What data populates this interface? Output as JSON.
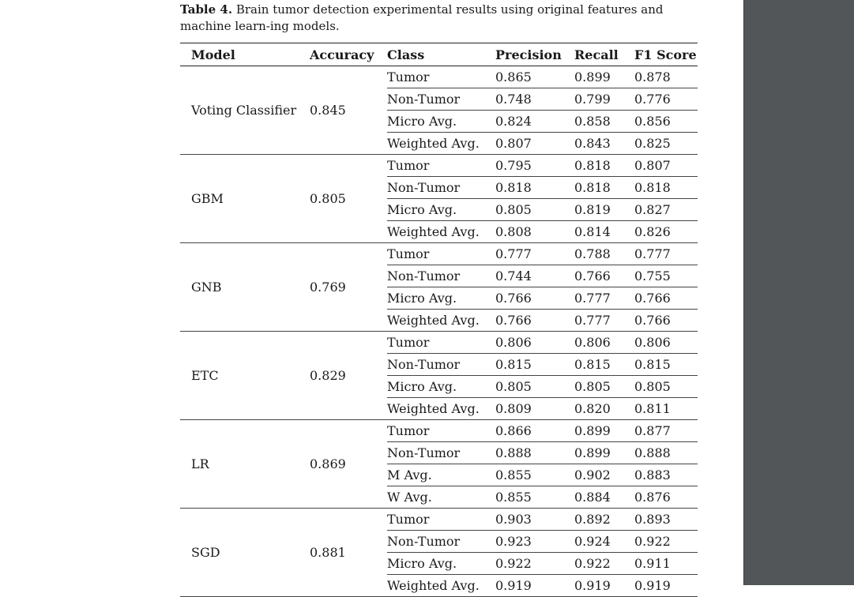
{
  "caption": {
    "label": "Table 4.",
    "text": "Brain tumor detection experimental results using original features and machine learn-ing models."
  },
  "table": {
    "headers": [
      "Model",
      "Accuracy",
      "Class",
      "Precision",
      "Recall",
      "F1 Score"
    ],
    "groups": [
      {
        "model": "Voting Classifier",
        "accuracy": "0.845",
        "rows": [
          {
            "class": "Tumor",
            "precision": "0.865",
            "recall": "0.899",
            "f1": "0.878"
          },
          {
            "class": "Non-Tumor",
            "precision": "0.748",
            "recall": "0.799",
            "f1": "0.776"
          },
          {
            "class": "Micro Avg.",
            "precision": "0.824",
            "recall": "0.858",
            "f1": "0.856"
          },
          {
            "class": "Weighted Avg.",
            "precision": "0.807",
            "recall": "0.843",
            "f1": "0.825"
          }
        ]
      },
      {
        "model": "GBM",
        "accuracy": "0.805",
        "rows": [
          {
            "class": "Tumor",
            "precision": "0.795",
            "recall": "0.818",
            "f1": "0.807"
          },
          {
            "class": "Non-Tumor",
            "precision": "0.818",
            "recall": "0.818",
            "f1": "0.818"
          },
          {
            "class": "Micro Avg.",
            "precision": "0.805",
            "recall": "0.819",
            "f1": "0.827"
          },
          {
            "class": "Weighted Avg.",
            "precision": "0.808",
            "recall": "0.814",
            "f1": "0.826"
          }
        ]
      },
      {
        "model": "GNB",
        "accuracy": "0.769",
        "rows": [
          {
            "class": "Tumor",
            "precision": "0.777",
            "recall": "0.788",
            "f1": "0.777"
          },
          {
            "class": "Non-Tumor",
            "precision": "0.744",
            "recall": "0.766",
            "f1": "0.755"
          },
          {
            "class": "Micro Avg.",
            "precision": "0.766",
            "recall": "0.777",
            "f1": "0.766"
          },
          {
            "class": "Weighted Avg.",
            "precision": "0.766",
            "recall": "0.777",
            "f1": "0.766"
          }
        ]
      },
      {
        "model": "ETC",
        "accuracy": "0.829",
        "rows": [
          {
            "class": "Tumor",
            "precision": "0.806",
            "recall": "0.806",
            "f1": "0.806"
          },
          {
            "class": "Non-Tumor",
            "precision": "0.815",
            "recall": "0.815",
            "f1": "0.815"
          },
          {
            "class": "Micro Avg.",
            "precision": "0.805",
            "recall": "0.805",
            "f1": "0.805"
          },
          {
            "class": "Weighted Avg.",
            "precision": "0.809",
            "recall": "0.820",
            "f1": "0.811"
          }
        ]
      },
      {
        "model": "LR",
        "accuracy": "0.869",
        "rows": [
          {
            "class": "Tumor",
            "precision": "0.866",
            "recall": "0.899",
            "f1": "0.877"
          },
          {
            "class": "Non-Tumor",
            "precision": "0.888",
            "recall": "0.899",
            "f1": "0.888"
          },
          {
            "class": "M Avg.",
            "precision": "0.855",
            "recall": "0.902",
            "f1": "0.883"
          },
          {
            "class": "W Avg.",
            "precision": "0.855",
            "recall": "0.884",
            "f1": "0.876"
          }
        ]
      },
      {
        "model": "SGD",
        "accuracy": "0.881",
        "rows": [
          {
            "class": "Tumor",
            "precision": "0.903",
            "recall": "0.892",
            "f1": "0.893"
          },
          {
            "class": "Non-Tumor",
            "precision": "0.923",
            "recall": "0.924",
            "f1": "0.922"
          },
          {
            "class": "Micro Avg.",
            "precision": "0.922",
            "recall": "0.922",
            "f1": "0.911"
          },
          {
            "class": "Weighted Avg.",
            "precision": "0.919",
            "recall": "0.919",
            "f1": "0.919"
          }
        ]
      }
    ]
  }
}
